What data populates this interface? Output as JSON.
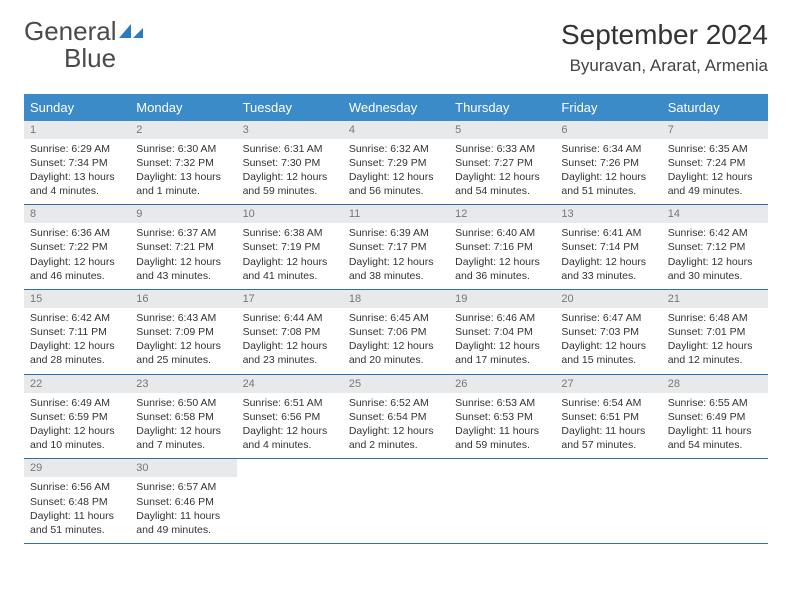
{
  "brand": {
    "name": "General",
    "name2": "Blue",
    "icon_color": "#2a7bbf",
    "text_color": "#4a4a4a"
  },
  "title": "September 2024",
  "location": "Byuravan, Ararat, Armenia",
  "colors": {
    "header_bg": "#3b8bc9",
    "week_border": "#2f6fa3",
    "daynum_bg": "#e7e9eb",
    "daynum_color": "#777"
  },
  "day_names": [
    "Sunday",
    "Monday",
    "Tuesday",
    "Wednesday",
    "Thursday",
    "Friday",
    "Saturday"
  ],
  "weeks": [
    [
      {
        "n": "1",
        "sr": "Sunrise: 6:29 AM",
        "ss": "Sunset: 7:34 PM",
        "dl": "Daylight: 13 hours and 4 minutes."
      },
      {
        "n": "2",
        "sr": "Sunrise: 6:30 AM",
        "ss": "Sunset: 7:32 PM",
        "dl": "Daylight: 13 hours and 1 minute."
      },
      {
        "n": "3",
        "sr": "Sunrise: 6:31 AM",
        "ss": "Sunset: 7:30 PM",
        "dl": "Daylight: 12 hours and 59 minutes."
      },
      {
        "n": "4",
        "sr": "Sunrise: 6:32 AM",
        "ss": "Sunset: 7:29 PM",
        "dl": "Daylight: 12 hours and 56 minutes."
      },
      {
        "n": "5",
        "sr": "Sunrise: 6:33 AM",
        "ss": "Sunset: 7:27 PM",
        "dl": "Daylight: 12 hours and 54 minutes."
      },
      {
        "n": "6",
        "sr": "Sunrise: 6:34 AM",
        "ss": "Sunset: 7:26 PM",
        "dl": "Daylight: 12 hours and 51 minutes."
      },
      {
        "n": "7",
        "sr": "Sunrise: 6:35 AM",
        "ss": "Sunset: 7:24 PM",
        "dl": "Daylight: 12 hours and 49 minutes."
      }
    ],
    [
      {
        "n": "8",
        "sr": "Sunrise: 6:36 AM",
        "ss": "Sunset: 7:22 PM",
        "dl": "Daylight: 12 hours and 46 minutes."
      },
      {
        "n": "9",
        "sr": "Sunrise: 6:37 AM",
        "ss": "Sunset: 7:21 PM",
        "dl": "Daylight: 12 hours and 43 minutes."
      },
      {
        "n": "10",
        "sr": "Sunrise: 6:38 AM",
        "ss": "Sunset: 7:19 PM",
        "dl": "Daylight: 12 hours and 41 minutes."
      },
      {
        "n": "11",
        "sr": "Sunrise: 6:39 AM",
        "ss": "Sunset: 7:17 PM",
        "dl": "Daylight: 12 hours and 38 minutes."
      },
      {
        "n": "12",
        "sr": "Sunrise: 6:40 AM",
        "ss": "Sunset: 7:16 PM",
        "dl": "Daylight: 12 hours and 36 minutes."
      },
      {
        "n": "13",
        "sr": "Sunrise: 6:41 AM",
        "ss": "Sunset: 7:14 PM",
        "dl": "Daylight: 12 hours and 33 minutes."
      },
      {
        "n": "14",
        "sr": "Sunrise: 6:42 AM",
        "ss": "Sunset: 7:12 PM",
        "dl": "Daylight: 12 hours and 30 minutes."
      }
    ],
    [
      {
        "n": "15",
        "sr": "Sunrise: 6:42 AM",
        "ss": "Sunset: 7:11 PM",
        "dl": "Daylight: 12 hours and 28 minutes."
      },
      {
        "n": "16",
        "sr": "Sunrise: 6:43 AM",
        "ss": "Sunset: 7:09 PM",
        "dl": "Daylight: 12 hours and 25 minutes."
      },
      {
        "n": "17",
        "sr": "Sunrise: 6:44 AM",
        "ss": "Sunset: 7:08 PM",
        "dl": "Daylight: 12 hours and 23 minutes."
      },
      {
        "n": "18",
        "sr": "Sunrise: 6:45 AM",
        "ss": "Sunset: 7:06 PM",
        "dl": "Daylight: 12 hours and 20 minutes."
      },
      {
        "n": "19",
        "sr": "Sunrise: 6:46 AM",
        "ss": "Sunset: 7:04 PM",
        "dl": "Daylight: 12 hours and 17 minutes."
      },
      {
        "n": "20",
        "sr": "Sunrise: 6:47 AM",
        "ss": "Sunset: 7:03 PM",
        "dl": "Daylight: 12 hours and 15 minutes."
      },
      {
        "n": "21",
        "sr": "Sunrise: 6:48 AM",
        "ss": "Sunset: 7:01 PM",
        "dl": "Daylight: 12 hours and 12 minutes."
      }
    ],
    [
      {
        "n": "22",
        "sr": "Sunrise: 6:49 AM",
        "ss": "Sunset: 6:59 PM",
        "dl": "Daylight: 12 hours and 10 minutes."
      },
      {
        "n": "23",
        "sr": "Sunrise: 6:50 AM",
        "ss": "Sunset: 6:58 PM",
        "dl": "Daylight: 12 hours and 7 minutes."
      },
      {
        "n": "24",
        "sr": "Sunrise: 6:51 AM",
        "ss": "Sunset: 6:56 PM",
        "dl": "Daylight: 12 hours and 4 minutes."
      },
      {
        "n": "25",
        "sr": "Sunrise: 6:52 AM",
        "ss": "Sunset: 6:54 PM",
        "dl": "Daylight: 12 hours and 2 minutes."
      },
      {
        "n": "26",
        "sr": "Sunrise: 6:53 AM",
        "ss": "Sunset: 6:53 PM",
        "dl": "Daylight: 11 hours and 59 minutes."
      },
      {
        "n": "27",
        "sr": "Sunrise: 6:54 AM",
        "ss": "Sunset: 6:51 PM",
        "dl": "Daylight: 11 hours and 57 minutes."
      },
      {
        "n": "28",
        "sr": "Sunrise: 6:55 AM",
        "ss": "Sunset: 6:49 PM",
        "dl": "Daylight: 11 hours and 54 minutes."
      }
    ],
    [
      {
        "n": "29",
        "sr": "Sunrise: 6:56 AM",
        "ss": "Sunset: 6:48 PM",
        "dl": "Daylight: 11 hours and 51 minutes."
      },
      {
        "n": "30",
        "sr": "Sunrise: 6:57 AM",
        "ss": "Sunset: 6:46 PM",
        "dl": "Daylight: 11 hours and 49 minutes."
      },
      null,
      null,
      null,
      null,
      null
    ]
  ]
}
